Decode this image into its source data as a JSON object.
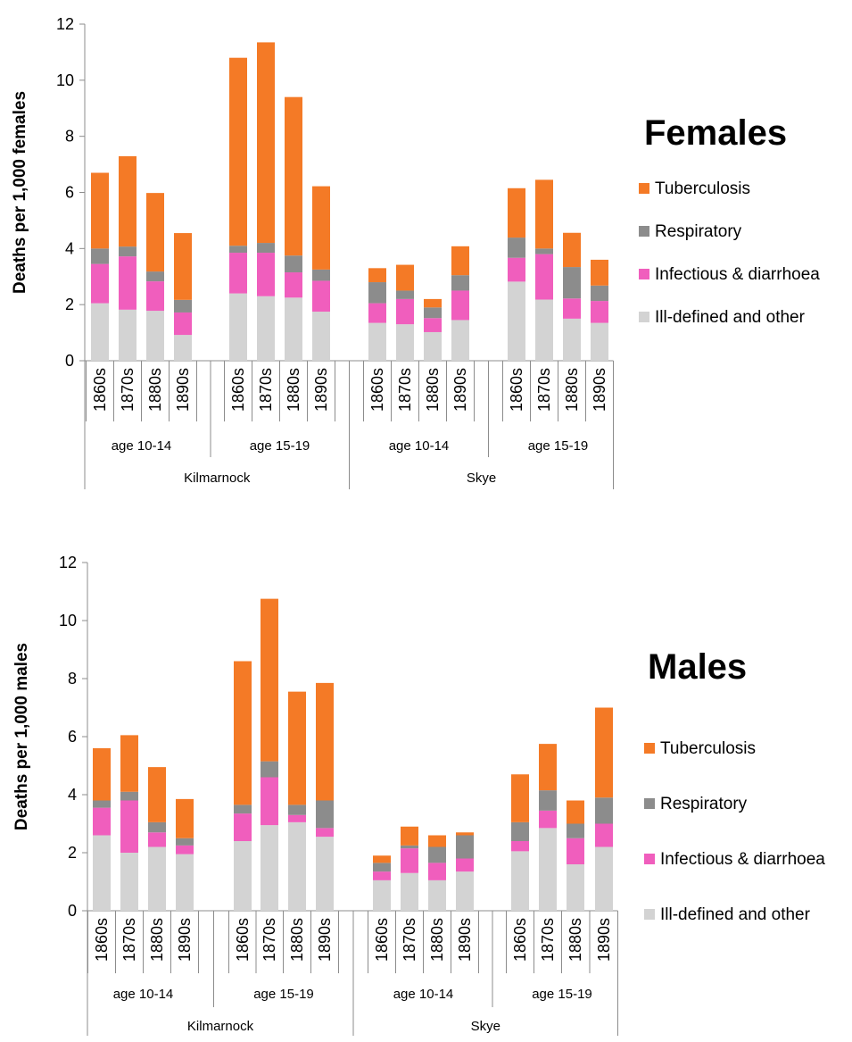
{
  "chart_data": [
    {
      "type": "bar",
      "stacked": true,
      "title": "Females",
      "ylabel": "Deaths per 1,000 females",
      "ylim": [
        0,
        12
      ],
      "yticks": [
        0,
        2,
        4,
        6,
        8,
        10,
        12
      ],
      "legend_position": "right",
      "places": [
        "Kilmarnock",
        "Skye"
      ],
      "age_groups": [
        "age 10-14",
        "age 15-19"
      ],
      "decades": [
        "1860s",
        "1870s",
        "1880s",
        "1890s"
      ],
      "categories": [
        "Kilmarnock / age 10-14 / 1860s",
        "Kilmarnock / age 10-14 / 1870s",
        "Kilmarnock / age 10-14 / 1880s",
        "Kilmarnock / age 10-14 / 1890s",
        "Kilmarnock / age 15-19 / 1860s",
        "Kilmarnock / age 15-19 / 1870s",
        "Kilmarnock / age 15-19 / 1880s",
        "Kilmarnock / age 15-19 / 1890s",
        "Skye / age 10-14 / 1860s",
        "Skye / age 10-14 / 1870s",
        "Skye / age 10-14 / 1880s",
        "Skye / age 10-14 / 1890s",
        "Skye / age 15-19 / 1860s",
        "Skye / age 15-19 / 1870s",
        "Skye / age 15-19 / 1880s",
        "Skye / age 15-19 / 1890s"
      ],
      "series": [
        {
          "name": "Ill-defined and other",
          "color": "#d3d3d3",
          "values": [
            2.05,
            1.82,
            1.78,
            0.92,
            2.4,
            2.3,
            2.25,
            1.75,
            1.35,
            1.3,
            1.02,
            1.45,
            2.82,
            2.18,
            1.5,
            1.35
          ]
        },
        {
          "name": "Infectious & diarrhoea",
          "color": "#f05ebd",
          "values": [
            1.4,
            1.9,
            1.05,
            0.8,
            1.45,
            1.55,
            0.9,
            1.1,
            0.7,
            0.9,
            0.5,
            1.05,
            0.85,
            1.62,
            0.72,
            0.78
          ]
        },
        {
          "name": "Respiratory",
          "color": "#8c8c8c",
          "values": [
            0.55,
            0.35,
            0.35,
            0.45,
            0.25,
            0.35,
            0.6,
            0.4,
            0.75,
            0.3,
            0.38,
            0.55,
            0.72,
            0.2,
            1.12,
            0.55
          ]
        },
        {
          "name": "Tuberculosis",
          "color": "#f47a26",
          "values": [
            2.7,
            3.22,
            2.8,
            2.38,
            6.7,
            7.15,
            5.65,
            2.97,
            0.5,
            0.92,
            0.3,
            1.03,
            1.76,
            2.45,
            1.22,
            0.92
          ]
        }
      ]
    },
    {
      "type": "bar",
      "stacked": true,
      "title": "Males",
      "ylabel": "Deaths per 1,000 males",
      "ylim": [
        0,
        12
      ],
      "yticks": [
        0,
        2,
        4,
        6,
        8,
        10,
        12
      ],
      "legend_position": "right",
      "places": [
        "Kilmarnock",
        "Skye"
      ],
      "age_groups": [
        "age 10-14",
        "age 15-19"
      ],
      "decades": [
        "1860s",
        "1870s",
        "1880s",
        "1890s"
      ],
      "categories": [
        "Kilmarnock / age 10-14 / 1860s",
        "Kilmarnock / age 10-14 / 1870s",
        "Kilmarnock / age 10-14 / 1880s",
        "Kilmarnock / age 10-14 / 1890s",
        "Kilmarnock / age 15-19 / 1860s",
        "Kilmarnock / age 15-19 / 1870s",
        "Kilmarnock / age 15-19 / 1880s",
        "Kilmarnock / age 15-19 / 1890s",
        "Skye / age 10-14 / 1860s",
        "Skye / age 10-14 / 1870s",
        "Skye / age 10-14 / 1880s",
        "Skye / age 10-14 / 1890s",
        "Skye / age 15-19 / 1860s",
        "Skye / age 15-19 / 1870s",
        "Skye / age 15-19 / 1880s",
        "Skye / age 15-19 / 1890s"
      ],
      "series": [
        {
          "name": "Ill-defined and other",
          "color": "#d3d3d3",
          "values": [
            2.6,
            2.0,
            2.2,
            1.95,
            2.4,
            2.95,
            3.05,
            2.55,
            1.05,
            1.3,
            1.05,
            1.35,
            2.05,
            2.85,
            1.6,
            2.2
          ]
        },
        {
          "name": "Infectious & diarrhoea",
          "color": "#f05ebd",
          "values": [
            0.95,
            1.8,
            0.5,
            0.3,
            0.95,
            1.65,
            0.25,
            0.3,
            0.3,
            0.85,
            0.6,
            0.45,
            0.35,
            0.6,
            0.9,
            0.8
          ]
        },
        {
          "name": "Respiratory",
          "color": "#8c8c8c",
          "values": [
            0.25,
            0.3,
            0.35,
            0.25,
            0.3,
            0.55,
            0.35,
            0.95,
            0.3,
            0.1,
            0.55,
            0.8,
            0.65,
            0.7,
            0.5,
            0.9
          ]
        },
        {
          "name": "Tuberculosis",
          "color": "#f47a26",
          "values": [
            1.8,
            1.95,
            1.9,
            1.35,
            4.95,
            5.6,
            3.9,
            4.05,
            0.25,
            0.65,
            0.4,
            0.1,
            1.65,
            1.6,
            0.8,
            3.1
          ]
        }
      ]
    }
  ],
  "legend_order": [
    "Tuberculosis",
    "Respiratory",
    "Infectious & diarrhoea",
    "Ill-defined and other"
  ]
}
